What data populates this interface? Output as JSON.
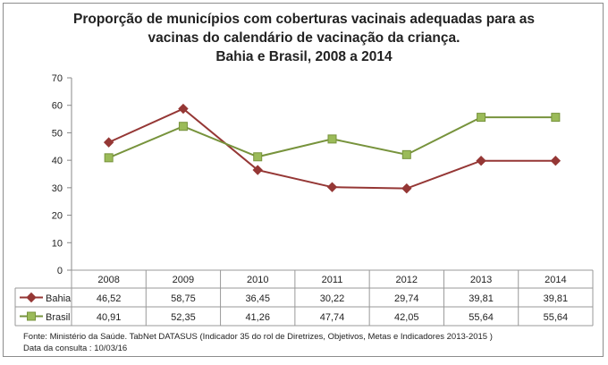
{
  "chart_data": {
    "type": "line",
    "title": [
      "Proporção de municípios com coberturas vacinais adequadas para as",
      "vacinas do calendário de vacinação da criança.",
      "Bahia e Brasil, 2008 a 2014"
    ],
    "categories": [
      "2008",
      "2009",
      "2010",
      "2011",
      "2012",
      "2013",
      "2014"
    ],
    "series": [
      {
        "name": "Bahia",
        "color": "#953735",
        "marker": "diamond",
        "values": [
          46.52,
          58.75,
          36.45,
          30.22,
          29.74,
          39.81,
          39.81
        ],
        "labels": [
          "46,52",
          "58,75",
          "36,45",
          "30,22",
          "29,74",
          "39,81",
          "39,81"
        ]
      },
      {
        "name": "Brasil",
        "color": "#77933c",
        "marker_fill": "#9bbb59",
        "marker": "square",
        "values": [
          40.91,
          52.35,
          41.26,
          47.74,
          42.05,
          55.64,
          55.64
        ],
        "labels": [
          "40,91",
          "52,35",
          "41,26",
          "47,74",
          "42,05",
          "55,64",
          "55,64"
        ]
      }
    ],
    "ylim": [
      0,
      70
    ],
    "yticks": [
      0,
      10,
      20,
      30,
      40,
      50,
      60,
      70
    ],
    "legend": "data-table",
    "footnote": [
      "Fonte: Ministério da Saúde. TabNet DATASUS (Indicador 35 do rol de Diretrizes, Objetivos, Metas e Indicadores 2013-2015 )",
      "Data da consulta : 10/03/16"
    ]
  }
}
